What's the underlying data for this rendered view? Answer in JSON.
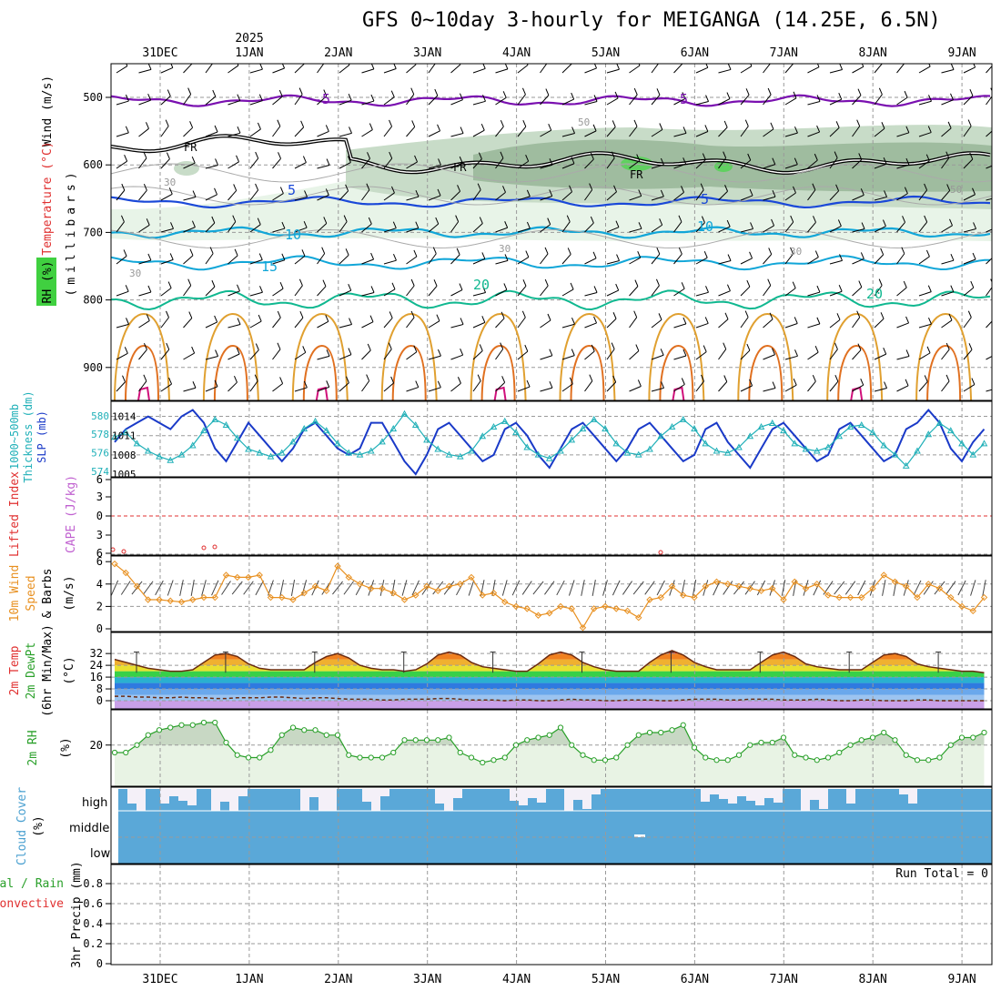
{
  "title": "GFS 0~10day 3-hourly for MEIGANGA (14.25E, 6.5N)",
  "year_label": "2025",
  "date_labels": [
    "31DEC",
    "1JAN",
    "2JAN",
    "3JAN",
    "4JAN",
    "5JAN",
    "6JAN",
    "7JAN",
    "8JAN",
    "9JAN"
  ],
  "run_total": "Run Total = 0",
  "colors": {
    "temp_line": "#7a10b0",
    "blue": "#1a48d8",
    "lightblue": "#11a6d8",
    "teal": "#10b890",
    "orange1": "#e0a030",
    "orange2": "#e07020",
    "magenta": "#d0107a",
    "rh_fill1": "#e8f4e8",
    "rh_fill2": "#c8dcc8",
    "rh_fill3": "#9fbc9f",
    "rh_fill4": "#60d060",
    "slp": "#1a3ac8",
    "thickness": "#20b0b8",
    "wind10m": "#e89020",
    "rh2m": "#2aa02a",
    "cloud": "#5aa8d8",
    "lifted": "#e03030",
    "cape": "#c060d0"
  },
  "labels": {
    "upper_wind": "Wind (m/s)",
    "upper_temp": "Temperature (°C)",
    "upper_rh": "RH (%)",
    "upper_unit": "(millibars)",
    "thk_a": "1000~500mb",
    "thk_b": "Thickness (dm)",
    "slp": "SLP (mb)",
    "li": "Lifted Index",
    "cape": "CAPE (J/kg)",
    "w10_a": "10m Wind",
    "w10_b": "Speed",
    "w10_c": "& Barbs",
    "w10_unit": "(m/s)",
    "t_a": "2m Temp",
    "t_b": "2m DewPt",
    "t_c": "(6hr Min/Max)",
    "t_unit": "(°C)",
    "rh2": "2m RH",
    "rh2_unit": "(%)",
    "cloud": "Cloud Cover",
    "cloud_unit": "(%)",
    "cloud_high": "high",
    "cloud_middle": "middle",
    "cloud_low": "low",
    "pr_a": "Total / Rain",
    "pr_b": "Convective",
    "pr_c": "3hr Precip (mm)"
  },
  "contour_labels": {
    "fr": "FR",
    "temp_minus5": "-5",
    "temp_5": "5",
    "temp_10": "10",
    "temp_15": "15",
    "temp_20": "20",
    "rh_30": "30",
    "rh_50": "50"
  },
  "chart_data": [
    {
      "type": "contour",
      "panel": "upper air time-height section",
      "y_ticks": [
        500,
        600,
        700,
        800,
        900
      ],
      "temperature_isotherms_C": [
        -5,
        0,
        5,
        10,
        15,
        20
      ],
      "freezing_level_mb": 570,
      "minus5_level_mb": 505,
      "plus5_level_mb": 655,
      "plus10_level_mb": 700,
      "plus15_level_mb": 745,
      "plus20_level_mb": 800,
      "rh_contours_percent": [
        30,
        50
      ]
    },
    {
      "type": "line",
      "panel": "SLP and thickness",
      "x": [
        "30DEC12",
        "30DEC15",
        "30DEC18",
        "30DEC21",
        "31DEC00",
        "31DEC03",
        "31DEC06",
        "31DEC09",
        "31DEC12",
        "31DEC15",
        "31DEC18",
        "31DEC21",
        "1JAN00",
        "1JAN03",
        "1JAN06",
        "1JAN09",
        "1JAN12",
        "1JAN15",
        "1JAN18",
        "1JAN21",
        "2JAN00",
        "2JAN03",
        "2JAN06",
        "2JAN09",
        "2JAN12",
        "2JAN15",
        "2JAN18",
        "2JAN21",
        "3JAN00",
        "3JAN03",
        "3JAN06",
        "3JAN09",
        "3JAN12",
        "3JAN15",
        "3JAN18",
        "3JAN21",
        "4JAN00",
        "4JAN03",
        "4JAN06",
        "4JAN09",
        "4JAN12",
        "4JAN15",
        "4JAN18",
        "4JAN21",
        "5JAN00",
        "5JAN03",
        "5JAN06",
        "5JAN09",
        "5JAN12",
        "5JAN15",
        "5JAN18",
        "5JAN21",
        "6JAN00",
        "6JAN03",
        "6JAN06",
        "6JAN09",
        "6JAN12",
        "6JAN15",
        "6JAN18",
        "6JAN21",
        "7JAN00",
        "7JAN03",
        "7JAN06",
        "7JAN09",
        "7JAN12",
        "7JAN15",
        "7JAN18",
        "7JAN21",
        "8JAN00",
        "8JAN03",
        "8JAN06",
        "8JAN09",
        "8JAN12",
        "8JAN15",
        "8JAN18",
        "8JAN21",
        "9JAN00",
        "9JAN03",
        "9JAN06"
      ],
      "yleft_label": "1000~500mb Thickness (dm)",
      "yright_label": "SLP (mb)",
      "yleft_ticks": [
        574,
        576,
        578,
        580
      ],
      "yright_ticks": [
        1005,
        1008,
        1011,
        1014
      ],
      "series": [
        {
          "name": "SLP (mb)",
          "axis": "right",
          "values": [
            1010,
            1012,
            1013,
            1014,
            1013,
            1012,
            1014,
            1015,
            1013,
            1009,
            1007,
            1010,
            1013,
            1011,
            1009,
            1007,
            1009,
            1012,
            1013,
            1011,
            1009,
            1008,
            1009,
            1013,
            1013,
            1010,
            1007,
            1005,
            1008,
            1012,
            1013,
            1011,
            1009,
            1007,
            1008,
            1012,
            1013,
            1011,
            1008,
            1006,
            1009,
            1012,
            1013,
            1011,
            1009,
            1007,
            1009,
            1012,
            1013,
            1011,
            1009,
            1007,
            1008,
            1012,
            1013,
            1010,
            1008,
            1006,
            1009,
            1012,
            1013,
            1011,
            1009,
            1007,
            1008,
            1012,
            1013,
            1011,
            1009,
            1007,
            1008,
            1012,
            1013,
            1015,
            1013,
            1009,
            1007,
            1010,
            1012
          ]
        },
        {
          "name": "1000~500mb Thickness (dm)",
          "axis": "left",
          "values": [
            577.7,
            578.2,
            577,
            576.2,
            575.6,
            575.2,
            575.8,
            576.8,
            578.4,
            579.6,
            579,
            577.6,
            576.4,
            576,
            575.6,
            576,
            577.2,
            578.6,
            579.4,
            578.4,
            577,
            576,
            575.8,
            576.2,
            577.2,
            578.6,
            580.2,
            579,
            577.4,
            576.4,
            575.8,
            575.6,
            576.2,
            577.8,
            578.8,
            579.4,
            578.2,
            576.6,
            575.8,
            575.4,
            576.2,
            577.4,
            578.6,
            579.6,
            578.6,
            577,
            576,
            575.8,
            576.4,
            577.8,
            578.8,
            579.6,
            578.6,
            577,
            576.2,
            576,
            576.6,
            577.8,
            578.8,
            579.2,
            578.4,
            577,
            576.4,
            576.2,
            576.6,
            577.8,
            578.8,
            579,
            578.2,
            576.8,
            575.8,
            574.6,
            576.2,
            578,
            579.2,
            578.4,
            577,
            575.8,
            577
          ]
        }
      ]
    },
    {
      "type": "line",
      "panel": "Lifted Index and CAPE",
      "yleft_label": "Lifted Index",
      "yright_label": "CAPE (J/kg)",
      "yleft_ticks": [
        6,
        3,
        0,
        -3,
        -6
      ],
      "zero_line": 0
    },
    {
      "type": "line",
      "panel": "10m wind",
      "ylabel": "(m/s)",
      "yticks": [
        0,
        2,
        4,
        6
      ],
      "series": [
        {
          "name": "Speed",
          "values": [
            5.8,
            5.0,
            3.8,
            2.6,
            2.6,
            2.5,
            2.4,
            2.6,
            2.8,
            2.8,
            4.8,
            4.6,
            4.6,
            4.8,
            2.8,
            2.8,
            2.6,
            3.2,
            3.8,
            3.4,
            5.6,
            4.6,
            4.0,
            3.6,
            3.6,
            3.2,
            2.6,
            3.0,
            3.8,
            3.4,
            3.8,
            4.0,
            4.6,
            3.0,
            3.2,
            2.4,
            2.0,
            1.8,
            1.2,
            1.4,
            2.0,
            1.8,
            0.1,
            1.8,
            2.0,
            1.8,
            1.6,
            1.0,
            2.6,
            2.8,
            3.8,
            3.0,
            2.8,
            3.8,
            4.2,
            4.0,
            3.8,
            3.6,
            3.4,
            3.6,
            2.6,
            4.2,
            3.6,
            4.0,
            3.0,
            2.8,
            2.8,
            2.8,
            3.6,
            4.8,
            4.2,
            3.8,
            2.8,
            4.0,
            3.6,
            2.8,
            2.0,
            1.6,
            2.8
          ]
        }
      ]
    },
    {
      "type": "area",
      "panel": "2m temperature and dew point",
      "ylabel": "(°C)",
      "yticks": [
        0,
        8,
        16,
        24,
        32
      ],
      "series": [
        {
          "name": "2m Temp",
          "values": [
            28,
            26,
            24,
            22,
            21,
            20,
            20,
            21,
            26,
            31,
            32,
            30,
            25,
            22,
            21,
            21,
            21,
            21,
            26,
            30,
            32,
            29,
            24,
            22,
            21,
            21,
            20,
            21,
            25,
            31,
            33,
            31,
            26,
            23,
            22,
            21,
            20,
            20,
            25,
            31,
            33,
            31,
            26,
            23,
            21,
            20,
            20,
            20,
            26,
            31,
            34,
            31,
            26,
            23,
            21,
            21,
            21,
            21,
            26,
            31,
            33,
            30,
            25,
            23,
            22,
            21,
            21,
            21,
            26,
            31,
            32,
            30,
            25,
            23,
            22,
            21,
            20,
            20,
            19
          ]
        },
        {
          "name": "2m DewPt",
          "values": [
            3,
            3,
            2.5,
            2.5,
            2,
            2,
            2.5,
            2,
            2,
            1.5,
            1.5,
            2,
            2,
            2,
            2.5,
            2.5,
            2,
            1.5,
            2,
            2,
            1.5,
            1,
            1,
            1,
            0.5,
            0.5,
            1,
            1,
            1,
            1.5,
            1.5,
            1,
            0.5,
            0.5,
            0.5,
            0,
            0.5,
            0.5,
            0,
            0,
            0.5,
            1,
            0.5,
            0.5,
            0,
            0,
            0.5,
            0.5,
            0.5,
            0,
            0,
            0.5,
            1,
            1,
            1,
            0.5,
            0.5,
            1,
            1,
            1,
            0.5,
            0.5,
            0.5,
            1,
            0.5,
            0,
            0,
            0.5,
            0.5,
            0,
            0,
            0,
            0.5,
            0.5,
            0,
            0,
            0,
            0,
            0
          ]
        }
      ]
    },
    {
      "type": "area",
      "panel": "2m RH",
      "ylabel": "(%)",
      "yticks": [
        20
      ],
      "series": [
        {
          "name": "2m RH",
          "values": [
            17,
            17,
            20,
            24,
            26,
            27,
            28,
            28,
            29,
            29,
            21,
            16,
            15,
            15,
            18,
            24,
            27,
            26,
            26,
            24,
            24,
            16,
            15,
            15,
            15,
            17,
            22,
            22,
            22,
            22,
            23,
            17,
            15,
            13,
            14,
            15,
            20,
            22,
            23,
            24,
            27,
            20,
            16,
            14,
            14,
            15,
            20,
            24,
            25,
            25,
            26,
            28,
            19,
            15,
            14,
            14,
            16,
            20,
            21,
            21,
            23,
            16,
            15,
            14,
            15,
            17,
            20,
            22,
            23,
            25,
            22,
            16,
            14,
            14,
            15,
            20,
            23,
            23,
            25
          ]
        }
      ]
    },
    {
      "type": "bar",
      "panel": "Cloud Cover",
      "categories": [
        "high",
        "middle",
        "low"
      ],
      "ylabel": "(%)"
    },
    {
      "type": "bar",
      "panel": "3hr Precip",
      "ylabel": "3hr Precip (mm)",
      "yticks": [
        0,
        0.2,
        0.4,
        0.6,
        0.8
      ],
      "ylim": [
        0,
        1
      ],
      "values": []
    }
  ]
}
